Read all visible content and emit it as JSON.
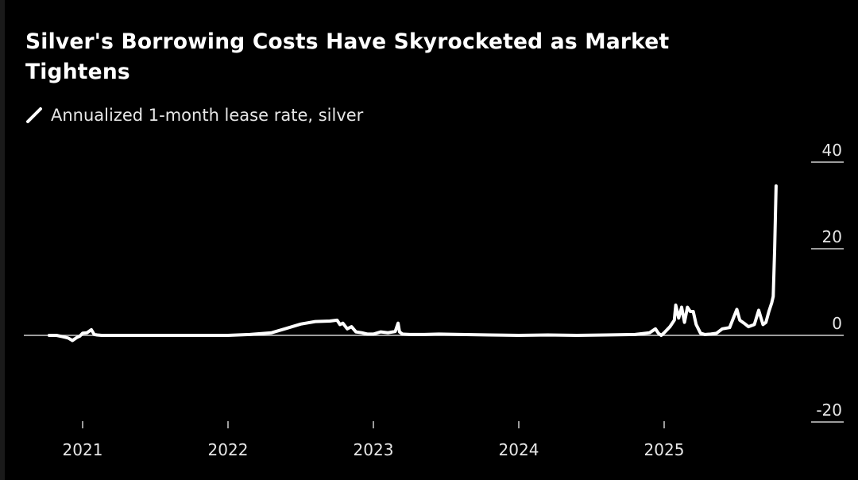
{
  "chart_data": {
    "type": "line",
    "title": "Silver's Borrowing Costs Have Skyrocketed as Market Tightens",
    "xlabel": "",
    "ylabel": "",
    "legend": {
      "position": "top-left",
      "entries": [
        "Annualized 1-month lease rate, silver"
      ]
    },
    "grid": false,
    "ylim": [
      -20,
      40
    ],
    "yticks": [
      40,
      20,
      0,
      -20
    ],
    "ytick_labels": [
      "40",
      "20",
      "0",
      "-20"
    ],
    "xlim": [
      2020.75,
      2025.85
    ],
    "xticks": [
      2021,
      2022,
      2023,
      2024,
      2025
    ],
    "xtick_labels": [
      "2021",
      "2022",
      "2023",
      "2024",
      "2025"
    ],
    "series": [
      {
        "name": "Annualized 1-month lease rate, silver",
        "color": "#ffffff",
        "x": [
          2020.77,
          2020.82,
          2020.86,
          2020.9,
          2020.93,
          2020.96,
          2020.98,
          2021.0,
          2021.03,
          2021.06,
          2021.08,
          2021.1,
          2021.13,
          2021.2,
          2021.4,
          2021.6,
          2021.8,
          2022.0,
          2022.15,
          2022.3,
          2022.4,
          2022.5,
          2022.6,
          2022.7,
          2022.75,
          2022.77,
          2022.79,
          2022.82,
          2022.85,
          2022.88,
          2022.92,
          2022.96,
          2023.0,
          2023.05,
          2023.1,
          2023.15,
          2023.17,
          2023.18,
          2023.2,
          2023.25,
          2023.35,
          2023.45,
          2023.6,
          2023.8,
          2024.0,
          2024.2,
          2024.4,
          2024.6,
          2024.8,
          2024.9,
          2024.94,
          2024.96,
          2024.98,
          2025.0,
          2025.04,
          2025.07,
          2025.08,
          2025.1,
          2025.12,
          2025.14,
          2025.16,
          2025.18,
          2025.2,
          2025.22,
          2025.25,
          2025.28,
          2025.32,
          2025.36,
          2025.4,
          2025.45,
          2025.5,
          2025.52,
          2025.55,
          2025.58,
          2025.62,
          2025.65,
          2025.68,
          2025.7,
          2025.72,
          2025.74,
          2025.75,
          2025.76,
          2025.77
        ],
        "y": [
          0.0,
          0.0,
          -0.3,
          -0.6,
          -1.2,
          -0.5,
          -0.2,
          0.5,
          0.6,
          1.3,
          0.2,
          0.1,
          0.0,
          0.0,
          0.0,
          0.0,
          0.0,
          0.0,
          0.2,
          0.6,
          1.6,
          2.6,
          3.2,
          3.3,
          3.5,
          2.5,
          2.8,
          1.5,
          2.0,
          0.8,
          0.6,
          0.3,
          0.3,
          0.8,
          0.6,
          0.9,
          2.8,
          0.8,
          0.3,
          0.2,
          0.2,
          0.3,
          0.2,
          0.1,
          0.0,
          0.1,
          0.0,
          0.1,
          0.2,
          0.6,
          1.5,
          0.5,
          0.0,
          0.6,
          2.0,
          3.5,
          7.0,
          4.0,
          6.5,
          3.0,
          6.5,
          5.5,
          5.5,
          2.5,
          0.5,
          0.2,
          0.3,
          0.5,
          1.5,
          1.8,
          6.0,
          3.5,
          2.8,
          2.0,
          2.5,
          5.8,
          2.5,
          3.0,
          5.5,
          7.5,
          9.0,
          20.0,
          34.5
        ]
      }
    ]
  }
}
